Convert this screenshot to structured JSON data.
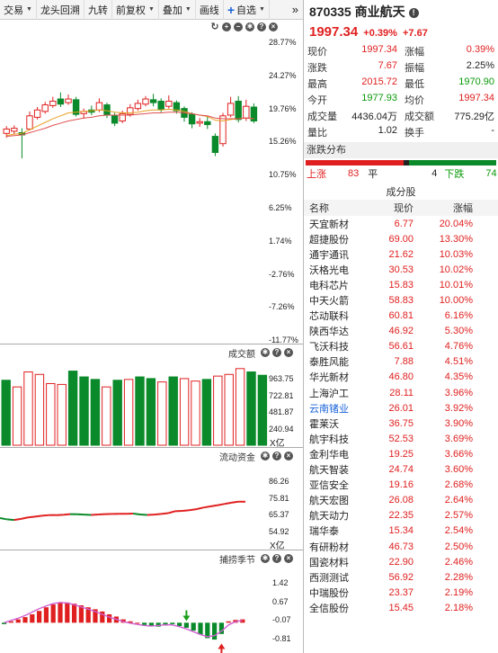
{
  "toolbar": {
    "items": [
      {
        "label": "交易",
        "dropdown": true
      },
      {
        "label": "龙头回溯",
        "dropdown": false
      },
      {
        "label": "九转",
        "dropdown": false
      },
      {
        "label": "前复权",
        "dropdown": true
      },
      {
        "label": "叠加",
        "dropdown": true
      },
      {
        "label": "画线",
        "dropdown": false
      }
    ],
    "watchlist_label": "自选",
    "more_label": "»"
  },
  "kline": {
    "axis_labels": [
      "28.77%",
      "24.27%",
      "19.76%",
      "15.26%",
      "10.75%",
      "6.25%",
      "1.74%",
      "-2.76%",
      "-7.26%",
      "-11.77%"
    ],
    "candles": [
      {
        "o": 16.2,
        "c": 16.8,
        "h": 17.2,
        "l": 15.6
      },
      {
        "o": 16.5,
        "c": 16.9,
        "h": 17.3,
        "l": 16.1
      },
      {
        "o": 16.3,
        "c": 16.0,
        "h": 16.9,
        "l": 12.8
      },
      {
        "o": 16.8,
        "c": 18.6,
        "h": 19.2,
        "l": 16.6
      },
      {
        "o": 18.4,
        "c": 19.4,
        "h": 19.8,
        "l": 18.1
      },
      {
        "o": 19.2,
        "c": 20.1,
        "h": 20.5,
        "l": 18.9
      },
      {
        "o": 20.0,
        "c": 20.6,
        "h": 21.2,
        "l": 19.7
      },
      {
        "o": 20.9,
        "c": 20.2,
        "h": 21.8,
        "l": 19.8
      },
      {
        "o": 20.4,
        "c": 20.9,
        "h": 21.5,
        "l": 20.1
      },
      {
        "o": 20.8,
        "c": 18.8,
        "h": 21.2,
        "l": 18.5
      },
      {
        "o": 18.9,
        "c": 19.2,
        "h": 19.6,
        "l": 18.2
      },
      {
        "o": 19.4,
        "c": 19.1,
        "h": 20.0,
        "l": 18.7
      },
      {
        "o": 19.4,
        "c": 20.4,
        "h": 21.0,
        "l": 19.1
      },
      {
        "o": 20.1,
        "c": 18.7,
        "h": 20.4,
        "l": 18.3
      },
      {
        "o": 18.6,
        "c": 17.6,
        "h": 19.0,
        "l": 17.2
      },
      {
        "o": 17.9,
        "c": 18.9,
        "h": 19.3,
        "l": 17.6
      },
      {
        "o": 18.8,
        "c": 19.7,
        "h": 20.2,
        "l": 18.5
      },
      {
        "o": 19.6,
        "c": 20.3,
        "h": 20.8,
        "l": 19.3
      },
      {
        "o": 20.2,
        "c": 20.9,
        "h": 21.3,
        "l": 19.9
      },
      {
        "o": 20.8,
        "c": 20.4,
        "h": 21.6,
        "l": 19.9
      },
      {
        "o": 20.6,
        "c": 19.5,
        "h": 21.0,
        "l": 19.1
      },
      {
        "o": 19.9,
        "c": 20.6,
        "h": 21.4,
        "l": 19.6
      },
      {
        "o": 20.4,
        "c": 19.3,
        "h": 20.7,
        "l": 18.9
      },
      {
        "o": 19.6,
        "c": 18.4,
        "h": 19.9,
        "l": 17.8
      },
      {
        "o": 18.8,
        "c": 17.5,
        "h": 19.1,
        "l": 16.9
      },
      {
        "o": 17.6,
        "c": 17.8,
        "h": 18.3,
        "l": 17.1
      },
      {
        "o": 17.8,
        "c": 17.4,
        "h": 18.5,
        "l": 16.8
      },
      {
        "o": 15.8,
        "c": 13.6,
        "h": 16.2,
        "l": 13.1
      },
      {
        "o": 14.8,
        "c": 18.6,
        "h": 19.0,
        "l": 14.4
      },
      {
        "o": 18.7,
        "c": 20.3,
        "h": 21.2,
        "l": 18.4
      },
      {
        "o": 20.6,
        "c": 18.1,
        "h": 21.3,
        "l": 17.7
      },
      {
        "o": 18.3,
        "c": 19.9,
        "h": 20.8,
        "l": 17.9
      },
      {
        "o": 19.8,
        "c": 17.9,
        "h": 20.3,
        "l": 17.6
      }
    ],
    "ma1": [
      15.9,
      16.1,
      16.2,
      16.7,
      17.2,
      17.7,
      18.2,
      18.6,
      19.0,
      19.1,
      19.2,
      19.3,
      19.4,
      19.3,
      19.1,
      19.0,
      19.0,
      19.1,
      19.3,
      19.4,
      19.4,
      19.5,
      19.4,
      19.2,
      18.9,
      18.7,
      18.5,
      18.0,
      17.9,
      18.1,
      18.2,
      18.3,
      18.2
    ],
    "ma2": [
      15.8,
      15.9,
      16.0,
      16.3,
      16.6,
      16.9,
      17.3,
      17.6,
      17.9,
      18.1,
      18.3,
      18.4,
      18.6,
      18.7,
      18.7,
      18.7,
      18.7,
      18.8,
      18.9,
      19.0,
      19.0,
      19.1,
      19.1,
      19.0,
      18.9,
      18.7,
      18.6,
      18.3,
      18.2,
      18.2,
      18.2,
      18.3,
      18.2
    ]
  },
  "volume": {
    "title": "成交额",
    "axis_labels": [
      "963.75",
      "722.81",
      "481.87",
      "240.94"
    ],
    "unit": "X亿",
    "bars": [
      {
        "v": 780,
        "up": false
      },
      {
        "v": 700,
        "up": true
      },
      {
        "v": 880,
        "up": true
      },
      {
        "v": 850,
        "up": true
      },
      {
        "v": 740,
        "up": true
      },
      {
        "v": 730,
        "up": true
      },
      {
        "v": 890,
        "up": false
      },
      {
        "v": 820,
        "up": false
      },
      {
        "v": 790,
        "up": false
      },
      {
        "v": 700,
        "up": true
      },
      {
        "v": 780,
        "up": false
      },
      {
        "v": 790,
        "up": true
      },
      {
        "v": 820,
        "up": false
      },
      {
        "v": 800,
        "up": false
      },
      {
        "v": 760,
        "up": true
      },
      {
        "v": 820,
        "up": false
      },
      {
        "v": 800,
        "up": true
      },
      {
        "v": 770,
        "up": true
      },
      {
        "v": 790,
        "up": false
      },
      {
        "v": 830,
        "up": true
      },
      {
        "v": 850,
        "up": true
      },
      {
        "v": 920,
        "up": true
      },
      {
        "v": 880,
        "up": false
      },
      {
        "v": 840,
        "up": false
      }
    ]
  },
  "flow": {
    "title": "流动资金",
    "axis_labels": [
      "86.26",
      "75.81",
      "65.37",
      "54.92"
    ],
    "unit": "X亿",
    "values": [
      63.2,
      62.4,
      62.0,
      62.7,
      63.6,
      64.1,
      64.6,
      65.0,
      65.0,
      65.2,
      65.6,
      65.5,
      65.3,
      65.1,
      65.4,
      65.6,
      65.7,
      65.8,
      65.8,
      65.9,
      65.4,
      65.1,
      65.3,
      65.7,
      66.2,
      67.4,
      67.6,
      68.0,
      68.6,
      69.6,
      70.3,
      71.0,
      71.8,
      72.6,
      73.2,
      73.2
    ]
  },
  "season": {
    "title": "捕捞季节",
    "axis_labels": [
      "1.42",
      "0.67",
      "-0.07",
      "-0.81"
    ],
    "hist": [
      -0.05,
      0.05,
      0.12,
      0.2,
      0.3,
      0.42,
      0.55,
      0.65,
      0.72,
      0.72,
      0.68,
      0.62,
      0.55,
      0.48,
      0.4,
      0.3,
      0.22,
      0.12,
      0.05,
      0.0,
      -0.08,
      -0.12,
      -0.14,
      -0.1,
      -0.05,
      -0.12,
      -0.18,
      -0.28,
      -0.42,
      -0.55,
      -0.6,
      -0.4,
      0.05,
      0.1,
      0.12
    ],
    "line": [
      0.0,
      0.08,
      0.16,
      0.26,
      0.38,
      0.5,
      0.6,
      0.68,
      0.72,
      0.7,
      0.64,
      0.56,
      0.48,
      0.4,
      0.3,
      0.2,
      0.12,
      0.04,
      -0.02,
      -0.06,
      -0.1,
      -0.12,
      -0.1,
      -0.07,
      -0.08,
      -0.14,
      -0.22,
      -0.32,
      -0.42,
      -0.5,
      -0.46,
      -0.3,
      -0.08,
      0.04,
      0.08
    ],
    "buy_index": 31,
    "sell_index": 26
  },
  "stock": {
    "code_name": "870335 商业航天",
    "price": "1997.34",
    "change_pct": "+0.39%",
    "change": "+7.67"
  },
  "quote": [
    [
      {
        "label": "现价",
        "value": "1997.34",
        "color": "red"
      },
      {
        "label": "涨幅",
        "value": "0.39%",
        "color": "red"
      }
    ],
    [
      {
        "label": "涨跌",
        "value": "7.67",
        "color": "red"
      },
      {
        "label": "振幅",
        "value": "2.25%",
        "color": "blk"
      }
    ],
    [
      {
        "label": "最高",
        "value": "2015.72",
        "color": "red"
      },
      {
        "label": "最低",
        "value": "1970.90",
        "color": "green"
      }
    ],
    [
      {
        "label": "今开",
        "value": "1977.93",
        "color": "green"
      },
      {
        "label": "均价",
        "value": "1997.34",
        "color": "red"
      }
    ],
    [
      {
        "label": "成交量",
        "value": "4436.04万",
        "color": "blk"
      },
      {
        "label": "成交额",
        "value": "775.29亿",
        "color": "blk"
      }
    ],
    [
      {
        "label": "量比",
        "value": "1.02",
        "color": "blk"
      },
      {
        "label": "换手",
        "value": "-",
        "color": "blk"
      }
    ]
  ],
  "distribution": {
    "title": "涨跌分布",
    "up_label": "上涨",
    "up_count": "83",
    "flat_label": "平",
    "flat_count": "4",
    "down_label": "下跌",
    "down_count": "74",
    "up_n": 83,
    "flat_n": 4,
    "down_n": 74
  },
  "constituents": {
    "title": "成分股",
    "headers": {
      "name": "名称",
      "price": "现价",
      "change": "涨幅"
    },
    "rows": [
      {
        "name": "天宜新材",
        "price": "6.77",
        "change": "20.04%",
        "blue": false
      },
      {
        "name": "超捷股份",
        "price": "69.00",
        "change": "13.30%",
        "blue": false
      },
      {
        "name": "通宇通讯",
        "price": "21.62",
        "change": "10.03%",
        "blue": false
      },
      {
        "name": "沃格光电",
        "price": "30.53",
        "change": "10.02%",
        "blue": false
      },
      {
        "name": "电科芯片",
        "price": "15.83",
        "change": "10.01%",
        "blue": false
      },
      {
        "name": "中天火箭",
        "price": "58.83",
        "change": "10.00%",
        "blue": false
      },
      {
        "name": "芯动联科",
        "price": "60.81",
        "change": "6.16%",
        "blue": false
      },
      {
        "name": "陕西华达",
        "price": "46.92",
        "change": "5.30%",
        "blue": false
      },
      {
        "name": "飞沃科技",
        "price": "56.61",
        "change": "4.76%",
        "blue": false
      },
      {
        "name": "泰胜风能",
        "price": "7.88",
        "change": "4.51%",
        "blue": false
      },
      {
        "name": "华光新材",
        "price": "46.80",
        "change": "4.35%",
        "blue": false
      },
      {
        "name": "上海沪工",
        "price": "28.11",
        "change": "3.96%",
        "blue": false
      },
      {
        "name": "云南锗业",
        "price": "26.01",
        "change": "3.92%",
        "blue": true
      },
      {
        "name": "霍莱沃",
        "price": "36.75",
        "change": "3.90%",
        "blue": false
      },
      {
        "name": "航宇科技",
        "price": "52.53",
        "change": "3.69%",
        "blue": false
      },
      {
        "name": "金利华电",
        "price": "19.25",
        "change": "3.66%",
        "blue": false
      },
      {
        "name": "航天智装",
        "price": "24.74",
        "change": "3.60%",
        "blue": false
      },
      {
        "name": "亚信安全",
        "price": "19.16",
        "change": "2.68%",
        "blue": false
      },
      {
        "name": "航天宏图",
        "price": "26.08",
        "change": "2.64%",
        "blue": false
      },
      {
        "name": "航天动力",
        "price": "22.35",
        "change": "2.57%",
        "blue": false
      },
      {
        "name": "瑞华泰",
        "price": "15.34",
        "change": "2.54%",
        "blue": false
      },
      {
        "name": "有研粉材",
        "price": "46.73",
        "change": "2.50%",
        "blue": false
      },
      {
        "name": "国瓷材料",
        "price": "22.90",
        "change": "2.46%",
        "blue": false
      },
      {
        "name": "西测测试",
        "price": "56.92",
        "change": "2.28%",
        "blue": false
      },
      {
        "name": "中瑞股份",
        "price": "23.37",
        "change": "2.19%",
        "blue": false
      },
      {
        "name": "全信股份",
        "price": "15.45",
        "change": "2.18%",
        "blue": false
      }
    ]
  },
  "colors": {
    "up": "#e02020",
    "down": "#0a8a2a",
    "ma1": "#e8a020",
    "ma2": "#e05050",
    "blue": "#1a64d8"
  }
}
